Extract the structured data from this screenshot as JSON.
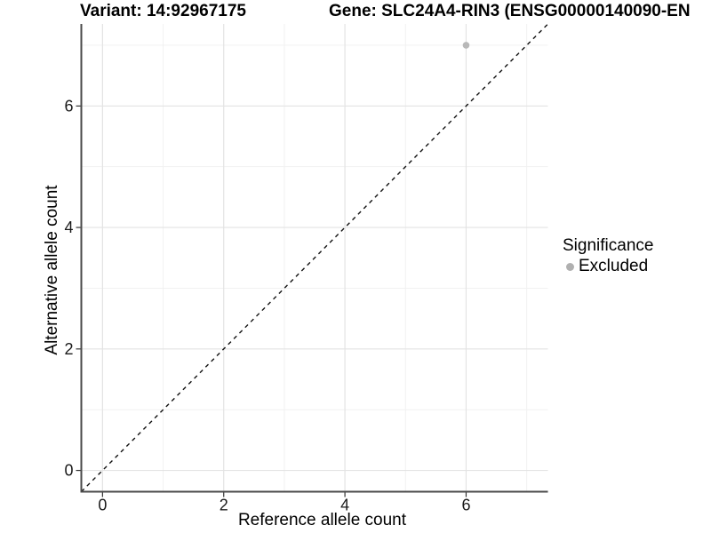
{
  "chart_data": {
    "type": "scatter",
    "titles": {
      "left": "Variant: 14:92967175",
      "right": "Gene: SLC24A4-RIN3 (ENSG00000140090-EN"
    },
    "xlabel": "Reference allele count",
    "ylabel": "Alternative allele count",
    "xlim": [
      -0.35,
      7.35
    ],
    "ylim": [
      -0.35,
      7.35
    ],
    "x_ticks": [
      0,
      2,
      4,
      6
    ],
    "y_ticks": [
      0,
      2,
      4,
      6
    ],
    "x_minor_ticks": [
      1,
      3,
      5,
      7
    ],
    "y_minor_ticks": [
      1,
      3,
      5,
      7
    ],
    "grid": true,
    "series": [
      {
        "name": "Excluded",
        "color": "#b8b8b8",
        "points": [
          {
            "x": 6,
            "y": 7
          }
        ]
      }
    ],
    "reference_line": {
      "type": "identity",
      "style": "dashed",
      "color": "#111111"
    },
    "legend": {
      "title": "Significance",
      "position": "right",
      "entries": [
        {
          "label": "Excluded",
          "color": "#b0b0b0"
        }
      ]
    },
    "colors": {
      "background": "#ffffff",
      "grid_major": "#e3e3e3",
      "grid_minor": "#f1f1f1",
      "axis_line": "#4a4a4a",
      "tick_mark": "#333333",
      "tick_text": "#1a1a1a"
    }
  }
}
